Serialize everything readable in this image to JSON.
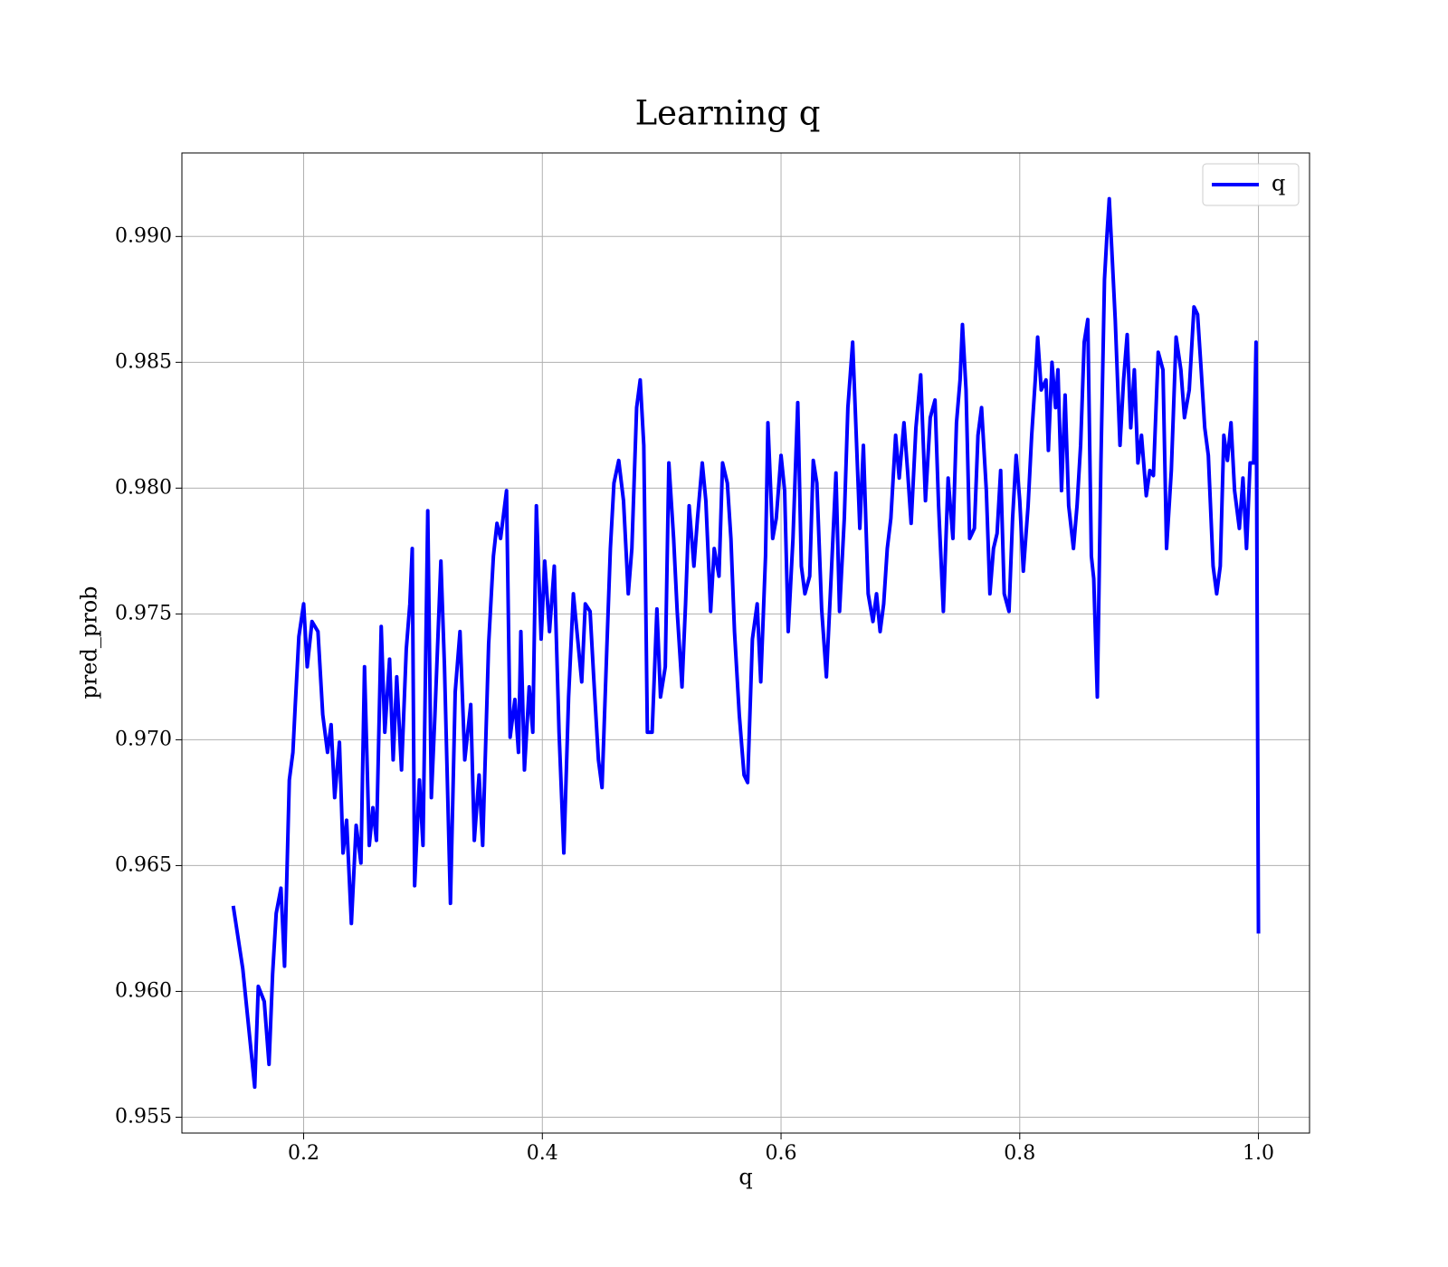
{
  "chart_data": {
    "type": "line",
    "title": "Learning q",
    "xlabel": "q",
    "ylabel": "pred_prob",
    "legend": "upper right",
    "grid": true,
    "xlim": [
      0.098,
      1.0428
    ],
    "ylim": [
      0.95437,
      0.99332
    ],
    "xticks": [
      0.2,
      0.4,
      0.6,
      0.8,
      {
        "value": 1,
        "label": "1.0"
      }
    ],
    "yticks": [
      0.955,
      {
        "value": 0.96,
        "label": "0.960"
      },
      0.965,
      {
        "value": 0.97,
        "label": "0.970"
      },
      0.975,
      {
        "value": 0.98,
        "label": "0.980"
      },
      0.985,
      {
        "value": 0.99,
        "label": "0.990"
      }
    ],
    "series": [
      {
        "name": "q",
        "color": "#0000ff",
        "x": [
          0.141,
          0.149,
          0.159,
          0.162,
          0.167,
          0.171,
          0.174,
          0.177,
          0.181,
          0.184,
          0.188,
          0.191,
          0.193,
          0.196,
          0.2,
          0.203,
          0.207,
          0.212,
          0.216,
          0.22,
          0.223,
          0.226,
          0.23,
          0.233,
          0.236,
          0.24,
          0.244,
          0.248,
          0.251,
          0.255,
          0.258,
          0.261,
          0.265,
          0.268,
          0.272,
          0.275,
          0.278,
          0.282,
          0.286,
          0.289,
          0.291,
          0.293,
          0.297,
          0.3,
          0.304,
          0.307,
          0.31,
          0.315,
          0.318,
          0.323,
          0.327,
          0.331,
          0.335,
          0.34,
          0.343,
          0.347,
          0.35,
          0.355,
          0.359,
          0.362,
          0.365,
          0.37,
          0.373,
          0.377,
          0.38,
          0.382,
          0.385,
          0.389,
          0.392,
          0.395,
          0.399,
          0.402,
          0.406,
          0.41,
          0.414,
          0.418,
          0.422,
          0.426,
          0.429,
          0.433,
          0.436,
          0.44,
          0.443,
          0.447,
          0.45,
          0.454,
          0.457,
          0.46,
          0.464,
          0.468,
          0.472,
          0.475,
          0.479,
          0.482,
          0.485,
          0.488,
          0.492,
          0.496,
          0.499,
          0.503,
          0.506,
          0.51,
          0.513,
          0.517,
          0.52,
          0.523,
          0.527,
          0.53,
          0.534,
          0.537,
          0.541,
          0.544,
          0.548,
          0.551,
          0.555,
          0.558,
          0.561,
          0.565,
          0.569,
          0.572,
          0.576,
          0.58,
          0.583,
          0.587,
          0.589,
          0.593,
          0.596,
          0.6,
          0.603,
          0.606,
          0.61,
          0.614,
          0.617,
          0.62,
          0.624,
          0.627,
          0.63,
          0.634,
          0.638,
          0.642,
          0.646,
          0.649,
          0.653,
          0.656,
          0.66,
          0.663,
          0.666,
          0.669,
          0.673,
          0.677,
          0.68,
          0.683,
          0.686,
          0.689,
          0.692,
          0.696,
          0.699,
          0.703,
          0.706,
          0.709,
          0.713,
          0.717,
          0.721,
          0.725,
          0.729,
          0.732,
          0.736,
          0.74,
          0.744,
          0.747,
          0.75,
          0.752,
          0.755,
          0.758,
          0.762,
          0.765,
          0.768,
          0.772,
          0.775,
          0.778,
          0.781,
          0.784,
          0.787,
          0.791,
          0.794,
          0.797,
          0.8,
          0.803,
          0.807,
          0.81,
          0.813,
          0.815,
          0.818,
          0.822,
          0.824,
          0.827,
          0.83,
          0.832,
          0.835,
          0.838,
          0.841,
          0.845,
          0.848,
          0.851,
          0.854,
          0.857,
          0.86,
          0.862,
          0.865,
          0.868,
          0.871,
          0.873,
          0.875,
          0.877,
          0.88,
          0.884,
          0.887,
          0.89,
          0.893,
          0.896,
          0.899,
          0.902,
          0.906,
          0.909,
          0.912,
          0.916,
          0.92,
          0.923,
          0.927,
          0.931,
          0.935,
          0.938,
          0.942,
          0.946,
          0.949,
          0.952,
          0.955,
          0.958,
          0.962,
          0.965,
          0.968,
          0.971,
          0.974,
          0.977,
          0.98,
          0.984,
          0.987,
          0.99,
          0.993,
          0.996,
          0.998,
          1.0
        ],
        "values": [
          0.9634,
          0.9609,
          0.9562,
          0.9602,
          0.9596,
          0.9571,
          0.9607,
          0.9631,
          0.9641,
          0.961,
          0.9684,
          0.9695,
          0.9714,
          0.9741,
          0.9754,
          0.9729,
          0.9747,
          0.9743,
          0.971,
          0.9695,
          0.9706,
          0.9677,
          0.9699,
          0.9655,
          0.9668,
          0.9627,
          0.9666,
          0.9651,
          0.9729,
          0.9658,
          0.9673,
          0.966,
          0.9745,
          0.9703,
          0.9732,
          0.9692,
          0.9725,
          0.9688,
          0.9736,
          0.9754,
          0.9776,
          0.9642,
          0.9684,
          0.9658,
          0.9791,
          0.9677,
          0.971,
          0.9771,
          0.9729,
          0.9635,
          0.9719,
          0.9743,
          0.9692,
          0.9714,
          0.966,
          0.9686,
          0.9658,
          0.9738,
          0.9773,
          0.9786,
          0.978,
          0.9799,
          0.9701,
          0.9716,
          0.9695,
          0.9743,
          0.9688,
          0.9721,
          0.9703,
          0.9793,
          0.974,
          0.9771,
          0.9743,
          0.9769,
          0.9703,
          0.9655,
          0.9717,
          0.9758,
          0.9743,
          0.9723,
          0.9754,
          0.9751,
          0.9725,
          0.9692,
          0.9681,
          0.9736,
          0.9776,
          0.9802,
          0.9811,
          0.9795,
          0.9758,
          0.9776,
          0.9832,
          0.9843,
          0.9817,
          0.9703,
          0.9703,
          0.9752,
          0.9717,
          0.9729,
          0.981,
          0.978,
          0.9751,
          0.9721,
          0.9754,
          0.9793,
          0.9769,
          0.9788,
          0.981,
          0.9795,
          0.9751,
          0.9776,
          0.9765,
          0.981,
          0.9802,
          0.978,
          0.9743,
          0.971,
          0.9686,
          0.9683,
          0.974,
          0.9754,
          0.9723,
          0.9773,
          0.9826,
          0.978,
          0.9788,
          0.9813,
          0.9799,
          0.9743,
          0.978,
          0.9834,
          0.9769,
          0.9758,
          0.9765,
          0.9811,
          0.9802,
          0.9752,
          0.9725,
          0.9765,
          0.9806,
          0.9751,
          0.9788,
          0.9832,
          0.9858,
          0.9821,
          0.9784,
          0.9817,
          0.9758,
          0.9747,
          0.9758,
          0.9743,
          0.9754,
          0.9776,
          0.9788,
          0.9821,
          0.9804,
          0.9826,
          0.9807,
          0.9786,
          0.9824,
          0.9845,
          0.9795,
          0.9828,
          0.9835,
          0.9793,
          0.9751,
          0.9804,
          0.978,
          0.9826,
          0.9843,
          0.9865,
          0.9839,
          0.978,
          0.9784,
          0.9821,
          0.9832,
          0.9799,
          0.9758,
          0.9776,
          0.9782,
          0.9807,
          0.9758,
          0.9751,
          0.9788,
          0.9813,
          0.9795,
          0.9767,
          0.9793,
          0.9821,
          0.9843,
          0.986,
          0.9839,
          0.9843,
          0.9815,
          0.985,
          0.9832,
          0.9847,
          0.9799,
          0.9837,
          0.9793,
          0.9776,
          0.9793,
          0.9817,
          0.9858,
          0.9867,
          0.9773,
          0.9764,
          0.9717,
          0.981,
          0.9883,
          0.99,
          0.9915,
          0.9896,
          0.9867,
          0.9817,
          0.9843,
          0.9861,
          0.9824,
          0.9847,
          0.981,
          0.9821,
          0.9797,
          0.9807,
          0.9805,
          0.9854,
          0.9847,
          0.9776,
          0.9807,
          0.986,
          0.9847,
          0.9828,
          0.9839,
          0.9872,
          0.9869,
          0.9847,
          0.9824,
          0.9813,
          0.9769,
          0.9758,
          0.9769,
          0.9821,
          0.9811,
          0.9826,
          0.9799,
          0.9784,
          0.9804,
          0.9776,
          0.981,
          0.981,
          0.9858,
          0.9623
        ]
      }
    ]
  }
}
